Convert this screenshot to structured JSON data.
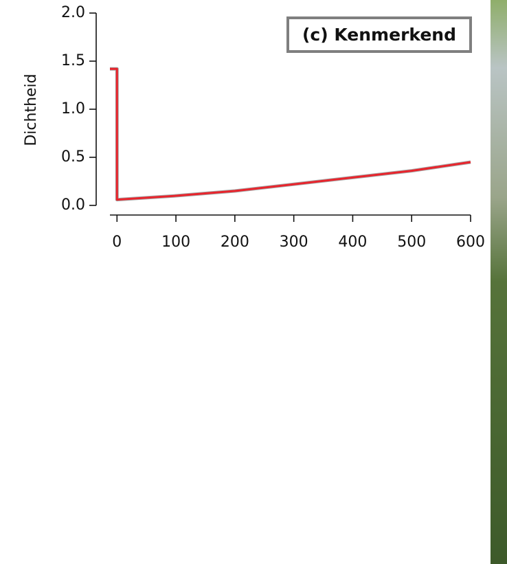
{
  "chart_data": {
    "type": "line",
    "annotation": "(c) Kenmerkend",
    "y_label": "Dichtheid",
    "x": [
      -12,
      -2,
      0,
      0,
      100,
      200,
      300,
      400,
      500,
      600
    ],
    "series": [
      {
        "color": "#e8242c",
        "values": [
          1.42,
          1.42,
          1.42,
          0.06,
          0.1,
          0.15,
          0.22,
          0.29,
          0.36,
          0.45
        ]
      }
    ],
    "xlim": [
      -12,
      600
    ],
    "xticks": [
      0,
      100,
      200,
      300,
      400,
      500,
      600
    ],
    "ylim": [
      0,
      2
    ],
    "yticks": [
      {
        "value": 0,
        "label": "0.0"
      },
      {
        "value": 0.5,
        "label": "0.5"
      },
      {
        "value": 1,
        "label": "1.0"
      },
      {
        "value": 1.5,
        "label": "1.5"
      },
      {
        "value": 2,
        "label": "2.0"
      }
    ],
    "grid": false
  }
}
